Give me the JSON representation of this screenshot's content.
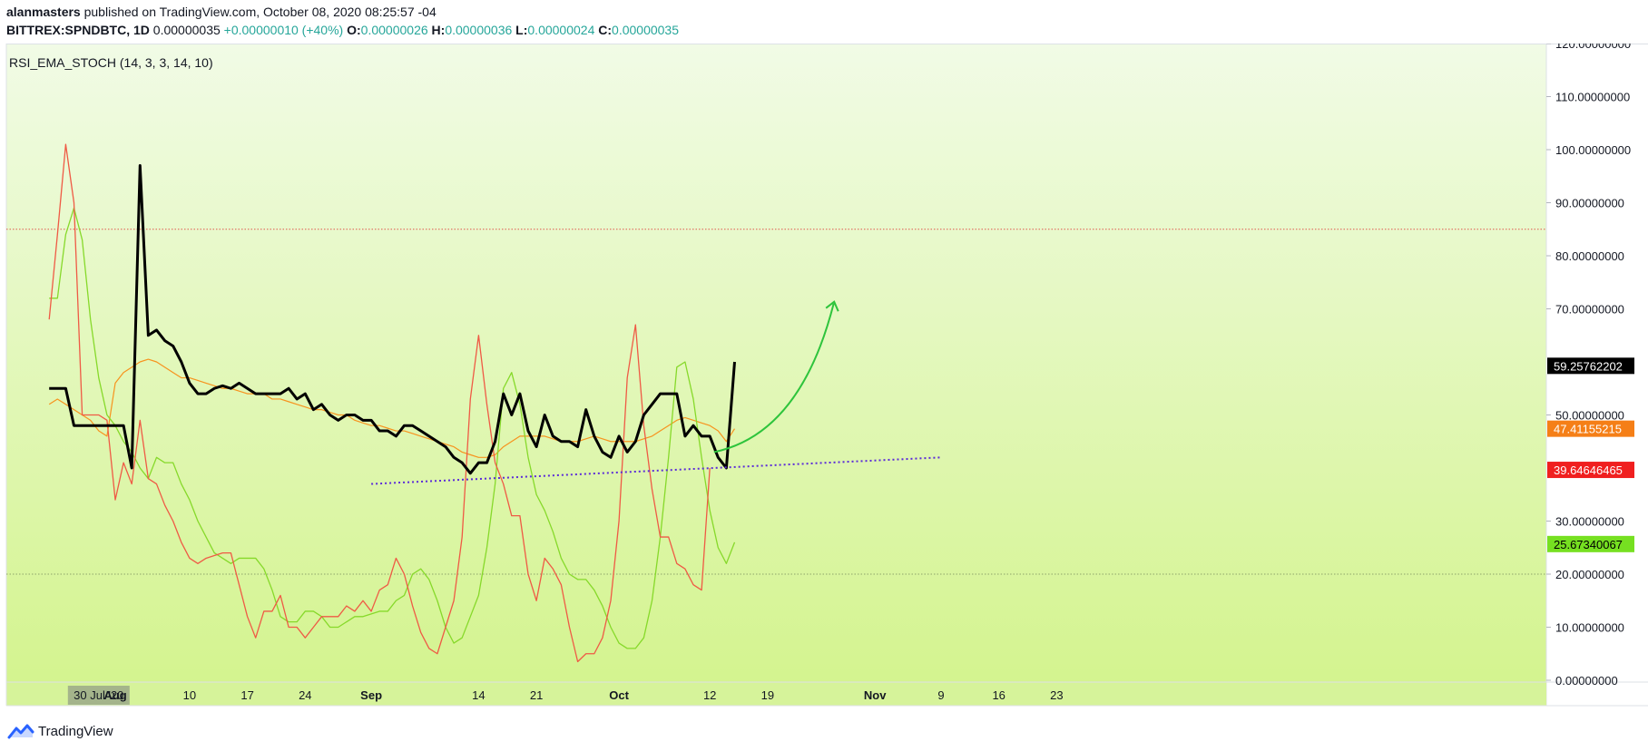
{
  "header": {
    "author": "alanmasters",
    "published_text": "published on TradingView.com, October 08, 2020 08:25:57 -04",
    "symbol": "BITTREX:SPNDBTC, 1D",
    "price": "0.00000035",
    "change": "+0.00000010 (+40%)",
    "o_label": "O:",
    "o_value": "0.00000026",
    "h_label": "H:",
    "h_value": "0.00000036",
    "l_label": "L:",
    "l_value": "0.00000024",
    "c_label": "C:",
    "c_value": "0.00000035"
  },
  "colors": {
    "bg_top": "#f1fbe6",
    "bg_bottom": "#d4f48f",
    "black_line": "#000000",
    "red_line": "#ef5a45",
    "green_line": "#86d92a",
    "orange_line": "#f7931e",
    "trendline": "#5b2ad9",
    "arrow": "#2ec43c",
    "level_85": "#e0584e",
    "level_20": "#8ca36a"
  },
  "chart_data": {
    "type": "line",
    "title": "RSI_EMA_STOCH (14, 3, 3, 14, 10)",
    "ylim": [
      0,
      120
    ],
    "y_ticks": [
      "120.00000000",
      "110.00000000",
      "100.00000000",
      "90.00000000",
      "80.00000000",
      "70.00000000",
      "50.00000000",
      "30.00000000",
      "20.00000000",
      "10.00000000",
      "0.00000000"
    ],
    "y_tick_values": [
      120,
      110,
      100,
      90,
      80,
      70,
      50,
      30,
      20,
      10,
      0
    ],
    "x_ticks": [
      "Aug",
      "10",
      "17",
      "24",
      "Sep",
      "14",
      "21",
      "Oct",
      "12",
      "19",
      "Nov",
      "9",
      "16",
      "23"
    ],
    "x_tick_days": [
      0,
      9,
      16,
      23,
      31,
      44,
      51,
      61,
      72,
      79,
      92,
      100,
      107,
      114
    ],
    "x_tick_bold": [
      true,
      false,
      false,
      false,
      true,
      false,
      false,
      true,
      false,
      false,
      true,
      false,
      false,
      false
    ],
    "x_axis_highlight": "30 Jul '20",
    "x_axis_highlight_day": -2,
    "x_start_day": -8,
    "x_end_day": 124,
    "bar_start_day": -8,
    "levels": [
      85,
      20
    ],
    "series": [
      {
        "values": [
          55,
          55,
          55,
          48,
          48,
          48,
          48,
          48,
          48,
          48,
          40,
          97,
          65,
          66,
          64,
          63,
          60,
          56,
          54,
          54,
          55,
          55.5,
          55,
          56,
          55,
          54,
          54,
          54,
          54,
          55,
          53,
          54,
          51,
          52,
          50,
          49,
          50,
          50,
          49,
          49,
          47,
          47,
          46,
          48,
          48,
          47,
          46,
          45,
          44,
          42,
          41,
          39,
          41,
          41,
          45,
          54,
          50,
          54,
          47,
          44,
          50,
          46,
          45,
          45,
          44,
          51,
          46,
          43,
          42,
          46,
          43,
          45,
          50,
          52,
          54,
          54,
          54,
          46,
          48,
          46,
          46,
          42,
          40,
          60
        ]
      },
      {
        "values": [
          68,
          84,
          101,
          90,
          50,
          50,
          50,
          49,
          34,
          41,
          37,
          49,
          38,
          37,
          33,
          30,
          26,
          23,
          22,
          23,
          23.5,
          24,
          24,
          18,
          12,
          8,
          13,
          13,
          16,
          10,
          10,
          8,
          10,
          12,
          12,
          12,
          14,
          13,
          15,
          13,
          17,
          18,
          23,
          20,
          14,
          9,
          6,
          5,
          10,
          15,
          27,
          53,
          65,
          52,
          41,
          37,
          31,
          31,
          20,
          15,
          23,
          21,
          18,
          10,
          3.5,
          5,
          5,
          8,
          15,
          30,
          57,
          67,
          48,
          36,
          27,
          27,
          22,
          21,
          18,
          17,
          40
        ]
      },
      {
        "values": [
          72,
          72,
          84,
          89,
          83,
          68,
          57,
          50,
          48,
          45,
          43,
          40,
          38,
          42,
          41,
          41,
          37,
          34,
          30,
          27,
          24,
          23,
          22,
          23,
          23,
          23,
          21,
          17,
          12,
          11,
          11,
          13,
          13,
          12,
          10,
          10,
          11,
          12,
          12,
          12.5,
          13,
          13,
          15,
          16,
          20,
          21,
          19,
          15,
          10,
          7,
          8,
          12,
          16,
          25,
          37,
          55,
          58,
          52,
          42,
          35,
          32,
          28,
          23,
          20,
          19,
          19,
          17,
          14,
          10,
          7,
          6,
          6,
          8,
          15,
          27,
          42,
          59,
          60,
          53,
          42,
          32,
          25,
          22,
          26
        ]
      },
      {
        "values": [
          52,
          53,
          52,
          51,
          50,
          49,
          47,
          46,
          56,
          58,
          59,
          60,
          60.5,
          60,
          59,
          58,
          57,
          57,
          56.5,
          56,
          55.5,
          55,
          55,
          54.5,
          54,
          54,
          54,
          53,
          53,
          52.5,
          52,
          51.5,
          51,
          51,
          50.5,
          50,
          50,
          49,
          48.5,
          48,
          48,
          47.5,
          47,
          47,
          46.5,
          46,
          45.5,
          45,
          44.5,
          44,
          43,
          42.5,
          42,
          42,
          42.5,
          44,
          45,
          46,
          46,
          46,
          46,
          45.5,
          45,
          45,
          45,
          45.5,
          46,
          45.5,
          45,
          45,
          45,
          45,
          45.5,
          46,
          47,
          48,
          49,
          49.5,
          49,
          48.5,
          48,
          47,
          45,
          47.4
        ]
      }
    ],
    "price_labels": [
      {
        "value": "59.25762202",
        "y": 59.26,
        "bg": "#000000",
        "fg": "#ffffff"
      },
      {
        "value": "47.41155215",
        "y": 47.41,
        "bg": "#f57f17",
        "fg": "#ffffff"
      },
      {
        "value": "39.64646465",
        "y": 39.65,
        "bg": "#f01f1f",
        "fg": "#ffffff"
      },
      {
        "value": "25.67340067",
        "y": 25.67,
        "bg": "#76e021",
        "fg": "#000000"
      }
    ],
    "trendline": {
      "from": {
        "day": 31,
        "y": 37
      },
      "to": {
        "day": 100,
        "y": 42
      }
    },
    "arrow": {
      "from": {
        "day": 72.5,
        "y": 43
      },
      "to": {
        "day": 87,
        "y": 71
      }
    }
  },
  "footer": {
    "brand": "TradingView"
  }
}
